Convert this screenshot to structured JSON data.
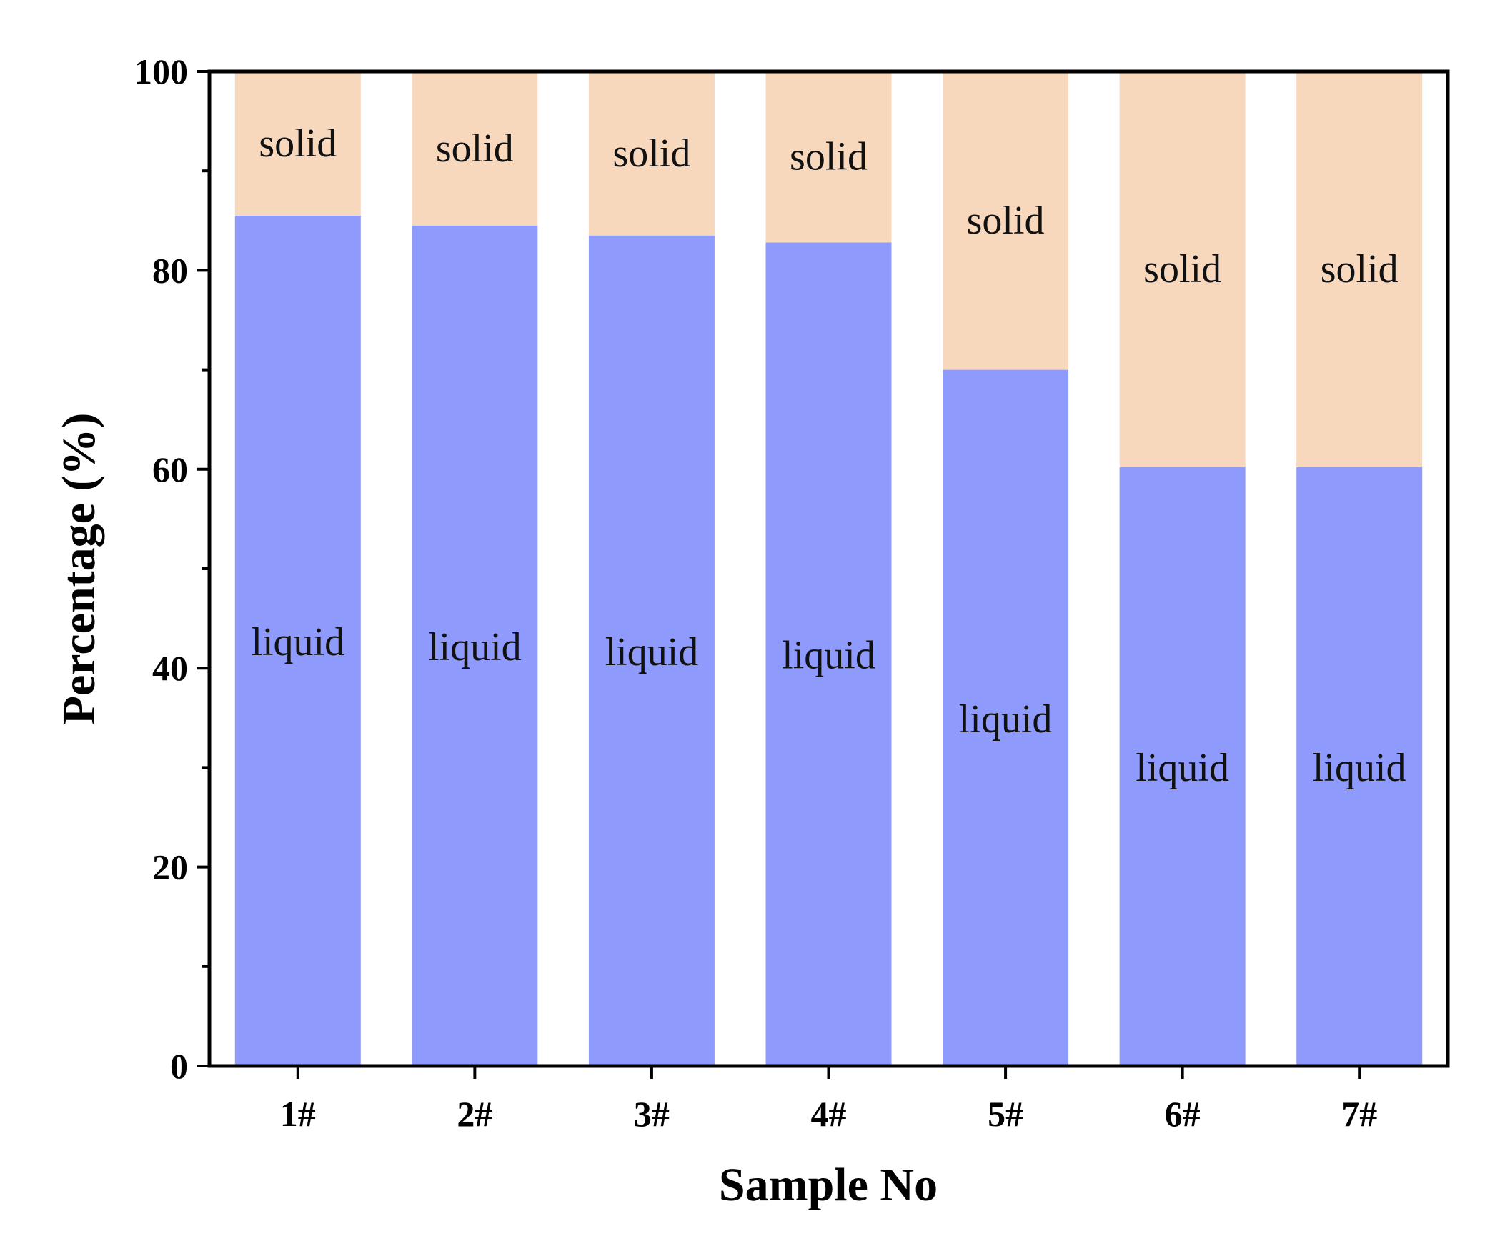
{
  "chart_data": {
    "type": "bar",
    "stacked": true,
    "categories": [
      "1#",
      "2#",
      "3#",
      "4#",
      "5#",
      "6#",
      "7#"
    ],
    "series": [
      {
        "name": "liquid",
        "values": [
          85.5,
          84.5,
          83.5,
          82.8,
          70.0,
          60.2,
          60.2
        ],
        "color": "#8f9bfc"
      },
      {
        "name": "solid",
        "values": [
          14.5,
          15.5,
          16.5,
          17.2,
          30.0,
          39.8,
          39.8
        ],
        "color": "#f8d8bc"
      }
    ],
    "xlabel": "Sample No",
    "ylabel": "Percentage (%)",
    "ylim": [
      0,
      100
    ],
    "yticks": [
      0,
      20,
      40,
      60,
      80,
      100
    ],
    "yticks_minor": [
      10,
      30,
      50,
      70,
      90
    ],
    "ytick_labels": [
      "0",
      "20",
      "40",
      "60",
      "80",
      "100"
    ],
    "grid": false,
    "legend": "none",
    "in_bar_labels": {
      "liquid": [
        "liquid",
        "liquid",
        "liquid",
        "liquid",
        "liquid",
        "liquid",
        "liquid"
      ],
      "solid": [
        "solid",
        "solid",
        "solid",
        "solid",
        "solid",
        "solid",
        "solid"
      ]
    }
  }
}
